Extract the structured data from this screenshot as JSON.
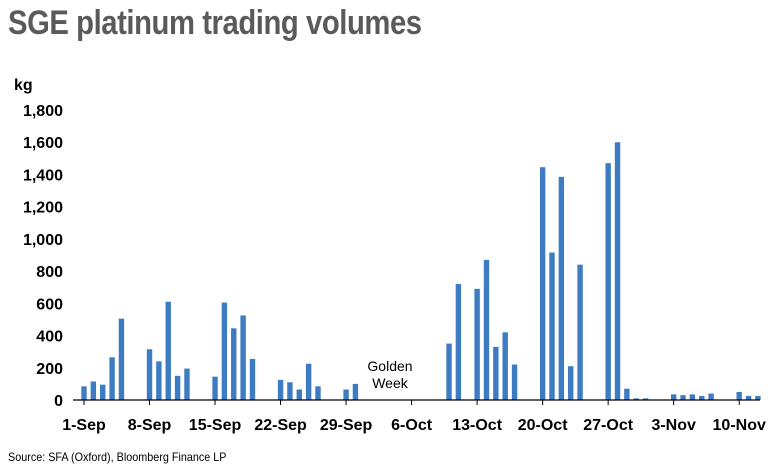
{
  "title": "SGE platinum trading volumes",
  "source": "Source: SFA (Oxford), Bloomberg Finance LP",
  "colors": {
    "bar": "#3d7cc2",
    "axis": "#000000",
    "title": "#5a5a5a"
  },
  "chart_data": {
    "type": "bar",
    "title": "SGE platinum trading volumes",
    "ylabel": "kg",
    "ylim": [
      0,
      1800
    ],
    "yticks": [
      "0",
      "200",
      "400",
      "600",
      "800",
      "1,000",
      "1,200",
      "1,400",
      "1,600",
      "1,800"
    ],
    "xtick_labels": [
      "1-Sep",
      "8-Sep",
      "15-Sep",
      "22-Sep",
      "29-Sep",
      "6-Oct",
      "13-Oct",
      "20-Oct",
      "27-Oct",
      "3-Nov",
      "10-Nov"
    ],
    "grid": false,
    "annotation": [
      "Golden",
      "Week"
    ],
    "series": [
      {
        "values": [
          85,
          115,
          95,
          265,
          505,
          null,
          null,
          315,
          240,
          610,
          150,
          195,
          null,
          null,
          145,
          605,
          445,
          525,
          255,
          null,
          null,
          125,
          110,
          65,
          225,
          85,
          null,
          null,
          65,
          100,
          null,
          null,
          null,
          null,
          null,
          null,
          null,
          null,
          null,
          350,
          720,
          null,
          690,
          870,
          330,
          420,
          220,
          null,
          null,
          1445,
          915,
          1385,
          210,
          840,
          null,
          null,
          1470,
          1600,
          70,
          10,
          10,
          null,
          null,
          35,
          30,
          35,
          25,
          40,
          null,
          null,
          50,
          25,
          25
        ]
      }
    ]
  }
}
